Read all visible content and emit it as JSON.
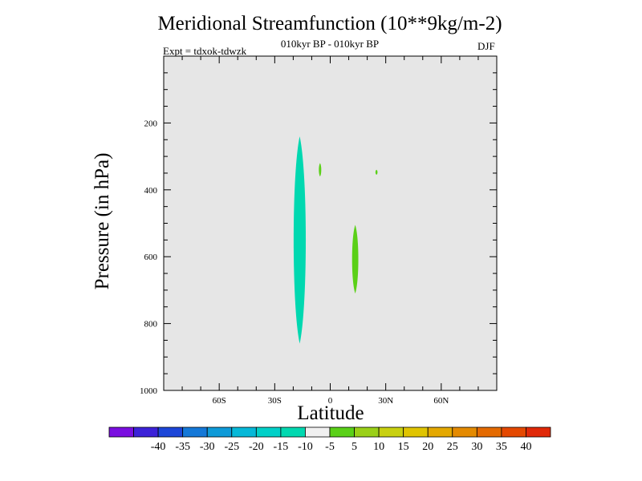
{
  "chart_data": {
    "type": "contour",
    "title": "Meridional Streamfunction (10**9kg/m-2)",
    "subtitle": "010kyr BP - 010kyr BP",
    "expt_label": "Expt = tdxok-tdwzk",
    "season": "DJF",
    "xlabel": "Latitude",
    "ylabel": "Pressure (in hPa)",
    "xlim": [
      -90,
      90
    ],
    "ylim": [
      1000,
      0
    ],
    "x_ticks": [
      {
        "value": -60,
        "label": "60S"
      },
      {
        "value": -30,
        "label": "30S"
      },
      {
        "value": 0,
        "label": "0"
      },
      {
        "value": 30,
        "label": "30N"
      },
      {
        "value": 60,
        "label": "60N"
      }
    ],
    "y_ticks": [
      {
        "value": 200,
        "label": "200"
      },
      {
        "value": 400,
        "label": "400"
      },
      {
        "value": 600,
        "label": "600"
      },
      {
        "value": 800,
        "label": "800"
      },
      {
        "value": 1000,
        "label": "1000"
      }
    ],
    "background_color": "#e6e6e6",
    "features": [
      {
        "name": "cell-sh",
        "bin": "-10 to -5",
        "color": "#00d8b0",
        "lat_center": -16.5,
        "lat_halfwidth": 3.5,
        "p_top": 240,
        "p_bottom": 860
      },
      {
        "name": "blob-a",
        "bin": "5 to 10",
        "color": "#5ad018",
        "lat_center": -5.5,
        "lat_halfwidth": 0.7,
        "p_top": 320,
        "p_bottom": 360
      },
      {
        "name": "blob-b",
        "bin": "5 to 10",
        "color": "#5ad018",
        "lat_center": 25,
        "lat_halfwidth": 0.6,
        "p_top": 340,
        "p_bottom": 355
      },
      {
        "name": "cell-nh",
        "bin": "5 to 10",
        "color": "#5ad018",
        "lat_center": 13.5,
        "lat_halfwidth": 1.8,
        "p_top": 505,
        "p_bottom": 710
      }
    ],
    "colorbar": {
      "colors": [
        "#7a0ee0",
        "#3c22d8",
        "#1c46d8",
        "#1478d8",
        "#0e9ad8",
        "#06b8d8",
        "#00d0c8",
        "#00d8b0",
        "#f0f0f0",
        "#5ad018",
        "#9ad018",
        "#c8d010",
        "#e0c400",
        "#e4a800",
        "#e48a00",
        "#e46a00",
        "#e44800",
        "#e02808"
      ],
      "labels": [
        "-40",
        "-35",
        "-30",
        "-25",
        "-20",
        "-15",
        "-10",
        "-5",
        "5",
        "10",
        "15",
        "20",
        "25",
        "30",
        "35",
        "40"
      ]
    }
  }
}
